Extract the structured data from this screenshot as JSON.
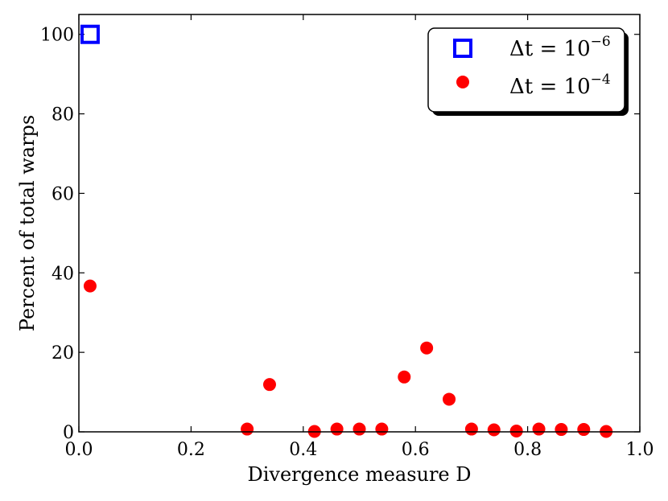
{
  "chart_data": {
    "type": "scatter",
    "xlabel": "Divergence measure D",
    "ylabel": "Percent of total warps",
    "xlim": [
      0.0,
      1.0
    ],
    "ylim": [
      0,
      105
    ],
    "x_ticks": [
      "0.0",
      "0.2",
      "0.4",
      "0.6",
      "0.8",
      "1.0"
    ],
    "y_ticks": [
      "0",
      "20",
      "40",
      "60",
      "80",
      "100"
    ],
    "grid": false,
    "legend_position": "top-right",
    "series": [
      {
        "name": "Δt = 10⁻⁶",
        "marker": "square-open",
        "color": "#0000ff",
        "points": [
          {
            "x": 0.02,
            "y": 100
          }
        ]
      },
      {
        "name": "Δt = 10⁻⁴",
        "marker": "circle-filled",
        "color": "#ff0000",
        "points": [
          {
            "x": 0.02,
            "y": 36.7
          },
          {
            "x": 0.3,
            "y": 0.7
          },
          {
            "x": 0.34,
            "y": 11.9
          },
          {
            "x": 0.42,
            "y": 0.1
          },
          {
            "x": 0.46,
            "y": 0.7
          },
          {
            "x": 0.5,
            "y": 0.7
          },
          {
            "x": 0.54,
            "y": 0.7
          },
          {
            "x": 0.58,
            "y": 13.8
          },
          {
            "x": 0.62,
            "y": 21.1
          },
          {
            "x": 0.66,
            "y": 8.2
          },
          {
            "x": 0.7,
            "y": 0.7
          },
          {
            "x": 0.74,
            "y": 0.5
          },
          {
            "x": 0.78,
            "y": 0.2
          },
          {
            "x": 0.82,
            "y": 0.7
          },
          {
            "x": 0.86,
            "y": 0.6
          },
          {
            "x": 0.9,
            "y": 0.6
          },
          {
            "x": 0.94,
            "y": 0.1
          }
        ]
      }
    ],
    "legend": {
      "labels": [
        {
          "prefix": "Δt = 10",
          "exponent": "−6"
        },
        {
          "prefix": "Δt = 10",
          "exponent": "−4"
        }
      ]
    }
  }
}
